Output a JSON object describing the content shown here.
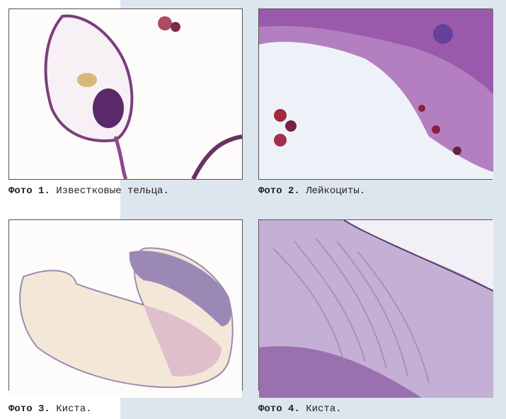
{
  "figures": [
    {
      "label": "Фото 1.",
      "caption": "Известковые тельца."
    },
    {
      "label": "Фото 2.",
      "caption": "Лейкоциты."
    },
    {
      "label": "Фото 3.",
      "caption": "Киста."
    },
    {
      "label": "Фото 4.",
      "caption": "Киста."
    }
  ]
}
